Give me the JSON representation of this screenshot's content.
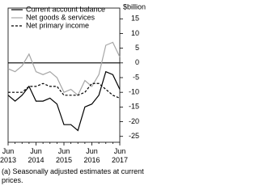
{
  "chart_data": {
    "type": "line",
    "ylabel": "$billion",
    "y_axis_side": "right",
    "categories": [
      "Jun 2013",
      null,
      null,
      null,
      "Jun 2014",
      null,
      null,
      null,
      "Jun 2015",
      null,
      null,
      null,
      "Jun 2016",
      null,
      null,
      null,
      "Jun 2017"
    ],
    "series": [
      {
        "name": "Current account balance",
        "color": "#000000",
        "dash": "solid",
        "values": [
          -11,
          -13,
          -11,
          -8,
          -13,
          -13,
          -12,
          -14,
          -21,
          -21,
          -23,
          -15,
          -14,
          -11,
          -3,
          -4,
          -9
        ]
      },
      {
        "name": "Net goods & services",
        "color": "#a6a6a6",
        "dash": "solid",
        "values": [
          -2,
          -3,
          -1,
          3,
          -3,
          -4,
          -3,
          -5,
          -10,
          -9,
          -11,
          -6,
          -8,
          -4,
          6,
          7,
          2
        ]
      },
      {
        "name": "Net primary income",
        "color": "#000000",
        "dash": "dashed",
        "values": [
          -10,
          -10,
          -10,
          -8,
          -8,
          -7,
          -8,
          -8,
          -11,
          -11,
          -11,
          -10,
          -7,
          -7,
          -9,
          -11,
          -12
        ]
      }
    ],
    "ylim": [
      -27,
      17
    ],
    "yticks": [
      15,
      10,
      5,
      0,
      -5,
      -10,
      -15,
      -20,
      -25
    ],
    "legend": "upper left",
    "footnote": "(a) Seasonally adjusted estimates at current prices."
  }
}
